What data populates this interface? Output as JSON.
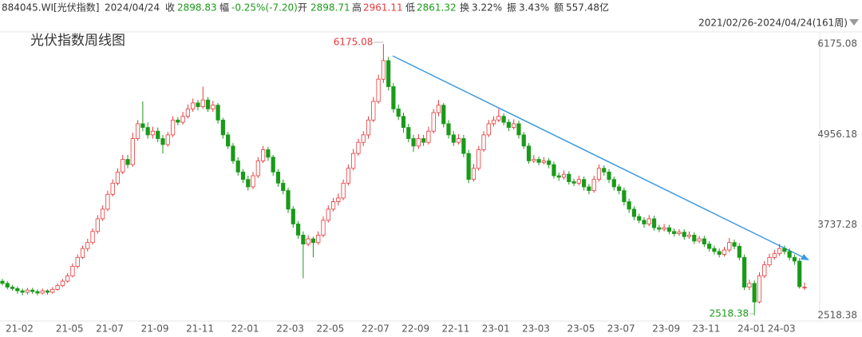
{
  "header": {
    "code": "884045.WI[光伏指数]",
    "date": "2024/04/24",
    "close_label": "收",
    "change_label": "幅",
    "change": "-0.25%(-7.20)",
    "open_label": "开",
    "high_label": "高",
    "low_label": "低",
    "turnover_label": "换",
    "turnover": "3.22%",
    "amplitude_label": "振",
    "amplitude": "3.43%",
    "amount_label": "额",
    "amount": "557.48亿",
    "range": "2021/02/26-2024/04/24(161周)"
  },
  "chart_data": {
    "type": "candlestick",
    "title": "光伏指数周线图",
    "up_color": "#e8383a",
    "down_color": "#1a9a1a",
    "ylim": [
      2518.38,
      6175.08
    ],
    "yticks": [
      2518.38,
      3737.28,
      4956.18,
      6175.08
    ],
    "grid": false,
    "categories": [
      "21-02",
      null,
      null,
      null,
      null,
      null,
      null,
      null,
      null,
      null,
      "21-05",
      null,
      null,
      null,
      null,
      null,
      null,
      null,
      "21-07",
      null,
      null,
      null,
      null,
      null,
      null,
      null,
      null,
      "21-09",
      null,
      null,
      null,
      null,
      null,
      null,
      null,
      null,
      "21-11",
      null,
      null,
      null,
      null,
      null,
      null,
      null,
      null,
      "22-01",
      null,
      null,
      null,
      null,
      null,
      null,
      null,
      null,
      "22-03",
      null,
      null,
      null,
      null,
      null,
      null,
      null,
      "22-05",
      null,
      null,
      null,
      null,
      null,
      null,
      null,
      null,
      "22-07",
      null,
      null,
      null,
      null,
      null,
      null,
      null,
      "22-09",
      null,
      null,
      null,
      null,
      null,
      null,
      null,
      "22-11",
      null,
      null,
      null,
      null,
      null,
      null,
      null,
      "23-01",
      null,
      null,
      null,
      null,
      null,
      null,
      null,
      "23-03",
      null,
      null,
      null,
      null,
      null,
      null,
      null,
      null,
      "23-05",
      null,
      null,
      null,
      null,
      null,
      null,
      null,
      "23-07",
      null,
      null,
      null,
      null,
      null,
      null,
      null,
      null,
      "23-09",
      null,
      null,
      null,
      null,
      null,
      null,
      null,
      "23-11",
      null,
      null,
      null,
      null,
      null,
      null,
      null,
      null,
      "24-01",
      null,
      null,
      null,
      null,
      null,
      "24-03",
      null,
      null,
      null,
      null,
      null,
      null,
      null,
      null
    ],
    "ohlc": [
      [
        2980,
        3010,
        2920,
        2950
      ],
      [
        2950,
        2980,
        2870,
        2900
      ],
      [
        2900,
        2930,
        2850,
        2880
      ],
      [
        2880,
        2910,
        2810,
        2850
      ],
      [
        2850,
        2880,
        2790,
        2830
      ],
      [
        2830,
        2890,
        2800,
        2860
      ],
      [
        2860,
        2890,
        2810,
        2840
      ],
      [
        2840,
        2870,
        2790,
        2820
      ],
      [
        2820,
        2880,
        2800,
        2850
      ],
      [
        2850,
        2870,
        2800,
        2830
      ],
      [
        2830,
        2900,
        2810,
        2870
      ],
      [
        2870,
        2950,
        2850,
        2920
      ],
      [
        2920,
        3010,
        2900,
        2980
      ],
      [
        2980,
        3090,
        2960,
        3050
      ],
      [
        3050,
        3220,
        3030,
        3180
      ],
      [
        3180,
        3340,
        3150,
        3300
      ],
      [
        3300,
        3460,
        3280,
        3420
      ],
      [
        3420,
        3550,
        3380,
        3500
      ],
      [
        3500,
        3690,
        3470,
        3650
      ],
      [
        3650,
        3870,
        3620,
        3820
      ],
      [
        3820,
        4000,
        3790,
        3950
      ],
      [
        3950,
        4200,
        3920,
        4150
      ],
      [
        4150,
        4350,
        4120,
        4300
      ],
      [
        4300,
        4500,
        4270,
        4450
      ],
      [
        4450,
        4680,
        4420,
        4620
      ],
      [
        4620,
        4680,
        4500,
        4550
      ],
      [
        4550,
        4980,
        4520,
        4900
      ],
      [
        4900,
        5150,
        4870,
        5100
      ],
      [
        5100,
        5400,
        5000,
        5050
      ],
      [
        5050,
        5120,
        4900,
        4950
      ],
      [
        4950,
        5060,
        4900,
        5000
      ],
      [
        5000,
        5050,
        4850,
        4900
      ],
      [
        4900,
        4950,
        4700,
        4820
      ],
      [
        4820,
        4990,
        4790,
        4950
      ],
      [
        4950,
        5200,
        4920,
        5150
      ],
      [
        5150,
        5190,
        5080,
        5120
      ],
      [
        5120,
        5260,
        5090,
        5200
      ],
      [
        5200,
        5360,
        5170,
        5300
      ],
      [
        5300,
        5440,
        5260,
        5380
      ],
      [
        5380,
        5420,
        5280,
        5330
      ],
      [
        5330,
        5600,
        5300,
        5420
      ],
      [
        5420,
        5460,
        5260,
        5300
      ],
      [
        5300,
        5410,
        5260,
        5350
      ],
      [
        5350,
        5380,
        5100,
        5150
      ],
      [
        5150,
        5180,
        4900,
        4950
      ],
      [
        4950,
        4990,
        4760,
        4800
      ],
      [
        4800,
        4840,
        4560,
        4600
      ],
      [
        4600,
        4650,
        4400,
        4450
      ],
      [
        4450,
        4490,
        4300,
        4350
      ],
      [
        4350,
        4400,
        4200,
        4250
      ],
      [
        4250,
        4450,
        4220,
        4400
      ],
      [
        4400,
        4650,
        4370,
        4600
      ],
      [
        4600,
        4800,
        4570,
        4750
      ],
      [
        4750,
        4790,
        4600,
        4650
      ],
      [
        4650,
        4680,
        4400,
        4450
      ],
      [
        4450,
        4490,
        4250,
        4300
      ],
      [
        4300,
        4350,
        4150,
        4200
      ],
      [
        4200,
        4240,
        3900,
        3950
      ],
      [
        3950,
        3990,
        3700,
        3750
      ],
      [
        3750,
        3790,
        3550,
        3600
      ],
      [
        3600,
        3650,
        3020,
        3480
      ],
      [
        3480,
        3600,
        3450,
        3550
      ],
      [
        3550,
        3580,
        3300,
        3500
      ],
      [
        3500,
        3650,
        3470,
        3600
      ],
      [
        3600,
        3850,
        3570,
        3800
      ],
      [
        3800,
        4000,
        3770,
        3950
      ],
      [
        3950,
        4100,
        3920,
        4050
      ],
      [
        4050,
        4160,
        4000,
        4100
      ],
      [
        4100,
        4350,
        4070,
        4300
      ],
      [
        4300,
        4550,
        4270,
        4500
      ],
      [
        4500,
        4760,
        4470,
        4700
      ],
      [
        4700,
        4900,
        4670,
        4850
      ],
      [
        4850,
        5000,
        4800,
        4950
      ],
      [
        4950,
        5200,
        4900,
        5150
      ],
      [
        5150,
        5460,
        5120,
        5400
      ],
      [
        5400,
        5760,
        5370,
        5700
      ],
      [
        5700,
        6175.08,
        5650,
        5950
      ],
      [
        5950,
        6000,
        5550,
        5600
      ],
      [
        5600,
        5650,
        5250,
        5300
      ],
      [
        5300,
        5360,
        5150,
        5200
      ],
      [
        5200,
        5250,
        4980,
        5050
      ],
      [
        5050,
        5100,
        4850,
        4900
      ],
      [
        4900,
        4950,
        4720,
        4800
      ],
      [
        4800,
        4960,
        4760,
        4900
      ],
      [
        4900,
        4950,
        4800,
        4850
      ],
      [
        4850,
        5060,
        4820,
        5000
      ],
      [
        5000,
        5300,
        4970,
        5250
      ],
      [
        5250,
        5420,
        5200,
        5350
      ],
      [
        5350,
        5380,
        5050,
        5100
      ],
      [
        5100,
        5150,
        4900,
        4950
      ],
      [
        4950,
        5000,
        4800,
        4850
      ],
      [
        4850,
        4960,
        4820,
        4900
      ],
      [
        4900,
        4950,
        4650,
        4700
      ],
      [
        4700,
        4750,
        4300,
        4350
      ],
      [
        4350,
        4560,
        4320,
        4500
      ],
      [
        4500,
        4800,
        4470,
        4750
      ],
      [
        4750,
        5000,
        4720,
        4950
      ],
      [
        4950,
        5150,
        4920,
        5100
      ],
      [
        5100,
        5200,
        5060,
        5150
      ],
      [
        5150,
        5300,
        5120,
        5200
      ],
      [
        5200,
        5240,
        5080,
        5120
      ],
      [
        5120,
        5160,
        5000,
        5050
      ],
      [
        5050,
        5160,
        5020,
        5100
      ],
      [
        5100,
        5140,
        4900,
        4950
      ],
      [
        4950,
        4990,
        4760,
        4800
      ],
      [
        4800,
        4840,
        4560,
        4600
      ],
      [
        4600,
        4680,
        4570,
        4620
      ],
      [
        4620,
        4660,
        4540,
        4580
      ],
      [
        4580,
        4650,
        4550,
        4600
      ],
      [
        4600,
        4640,
        4500,
        4550
      ],
      [
        4550,
        4590,
        4360,
        4400
      ],
      [
        4400,
        4440,
        4330,
        4380
      ],
      [
        4380,
        4470,
        4350,
        4420
      ],
      [
        4420,
        4460,
        4280,
        4320
      ],
      [
        4320,
        4360,
        4260,
        4300
      ],
      [
        4300,
        4400,
        4270,
        4350
      ],
      [
        4350,
        4390,
        4200,
        4250
      ],
      [
        4250,
        4290,
        4150,
        4200
      ],
      [
        4200,
        4400,
        4170,
        4350
      ],
      [
        4350,
        4550,
        4320,
        4500
      ],
      [
        4500,
        4540,
        4400,
        4450
      ],
      [
        4450,
        4490,
        4300,
        4350
      ],
      [
        4350,
        4390,
        4200,
        4250
      ],
      [
        4250,
        4290,
        4150,
        4200
      ],
      [
        4200,
        4240,
        4000,
        4050
      ],
      [
        4050,
        4090,
        3900,
        3950
      ],
      [
        3950,
        3990,
        3800,
        3850
      ],
      [
        3850,
        3890,
        3760,
        3800
      ],
      [
        3800,
        3840,
        3700,
        3750
      ],
      [
        3750,
        3870,
        3720,
        3820
      ],
      [
        3820,
        3860,
        3660,
        3700
      ],
      [
        3700,
        3740,
        3640,
        3680
      ],
      [
        3680,
        3750,
        3650,
        3700
      ],
      [
        3700,
        3740,
        3610,
        3650
      ],
      [
        3650,
        3690,
        3580,
        3620
      ],
      [
        3620,
        3680,
        3590,
        3640
      ],
      [
        3640,
        3680,
        3540,
        3580
      ],
      [
        3580,
        3650,
        3550,
        3600
      ],
      [
        3600,
        3640,
        3480,
        3520
      ],
      [
        3520,
        3590,
        3490,
        3550
      ],
      [
        3550,
        3590,
        3440,
        3480
      ],
      [
        3480,
        3520,
        3380,
        3420
      ],
      [
        3420,
        3460,
        3340,
        3380
      ],
      [
        3380,
        3420,
        3300,
        3340
      ],
      [
        3340,
        3440,
        3310,
        3400
      ],
      [
        3400,
        3560,
        3370,
        3500
      ],
      [
        3500,
        3540,
        3410,
        3450
      ],
      [
        3450,
        3490,
        3260,
        3300
      ],
      [
        3300,
        3340,
        2860,
        2900
      ],
      [
        2900,
        3000,
        2860,
        2950
      ],
      [
        2950,
        2990,
        2518.38,
        2700
      ],
      [
        2700,
        3100,
        2680,
        3050
      ],
      [
        3050,
        3250,
        3020,
        3200
      ],
      [
        3200,
        3350,
        3170,
        3300
      ],
      [
        3300,
        3400,
        3270,
        3350
      ],
      [
        3350,
        3480,
        3320,
        3420
      ],
      [
        3420,
        3460,
        3340,
        3380
      ],
      [
        3380,
        3420,
        3260,
        3300
      ],
      [
        3300,
        3340,
        3200,
        3250
      ],
      [
        3250,
        3290,
        2880,
        2906.03
      ],
      [
        2898.71,
        2961.11,
        2861.32,
        2898.83
      ]
    ]
  }
}
